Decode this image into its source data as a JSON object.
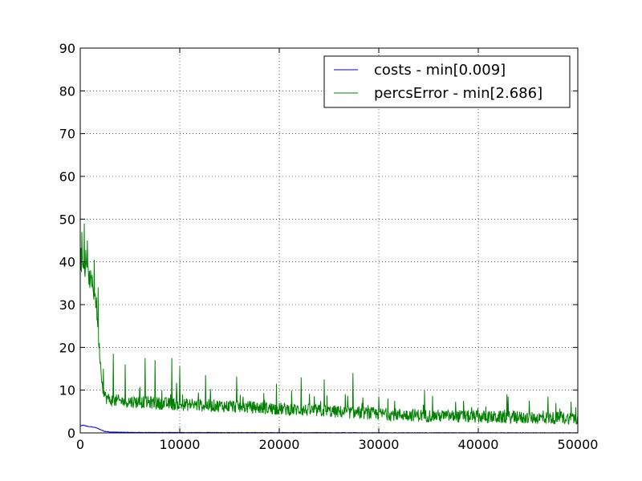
{
  "chart_data": {
    "type": "line",
    "title": "",
    "xlabel": "",
    "ylabel": "",
    "xlim": [
      0,
      50000
    ],
    "ylim": [
      0,
      90
    ],
    "x_ticks": [
      0,
      10000,
      20000,
      30000,
      40000,
      50000
    ],
    "y_ticks": [
      0,
      10,
      20,
      30,
      40,
      50,
      60,
      70,
      80,
      90
    ],
    "grid": true,
    "grid_style": "dotted",
    "legend_placement": "top-right",
    "series": [
      {
        "name": "costs - min[0.009]",
        "color": "#0000ff",
        "noise": "low",
        "x": [
          0,
          300,
          800,
          1200,
          1600,
          2000,
          2400,
          3000,
          4000,
          6000,
          10000,
          20000,
          30000,
          40000,
          50000
        ],
        "y": [
          1.6,
          1.8,
          1.5,
          1.4,
          1.2,
          0.8,
          0.4,
          0.2,
          0.15,
          0.1,
          0.08,
          0.05,
          0.03,
          0.02,
          0.01
        ]
      },
      {
        "name": "percsError - min[2.686]",
        "color": "#008000",
        "noise": "high",
        "x": [
          0,
          300,
          800,
          1200,
          1600,
          1900,
          2200,
          2500,
          3000,
          4000,
          6000,
          8000,
          10000,
          15000,
          20000,
          25000,
          30000,
          35000,
          40000,
          45000,
          50000
        ],
        "y": [
          40,
          38,
          36,
          34,
          30,
          20,
          11,
          8,
          7.2,
          7.0,
          6.8,
          6.5,
          6.2,
          5.8,
          5.2,
          4.6,
          4.0,
          3.6,
          3.3,
          3.1,
          3.0
        ],
        "spikes": [
          {
            "x": 150,
            "y": 47
          },
          {
            "x": 400,
            "y": 49
          },
          {
            "x": 700,
            "y": 45
          },
          {
            "x": 1400,
            "y": 40.5
          },
          {
            "x": 1800,
            "y": 34
          },
          {
            "x": 2300,
            "y": 15
          },
          {
            "x": 3300,
            "y": 18.5
          },
          {
            "x": 4500,
            "y": 16
          },
          {
            "x": 6500,
            "y": 17.5
          },
          {
            "x": 7500,
            "y": 17
          },
          {
            "x": 9200,
            "y": 17.5
          },
          {
            "x": 10000,
            "y": 15.5
          },
          {
            "x": 12600,
            "y": 13.5
          },
          {
            "x": 15700,
            "y": 13.2
          },
          {
            "x": 19700,
            "y": 11.5
          },
          {
            "x": 22200,
            "y": 13
          },
          {
            "x": 24500,
            "y": 12.5
          },
          {
            "x": 27400,
            "y": 14
          },
          {
            "x": 30000,
            "y": 8.5
          },
          {
            "x": 34600,
            "y": 10
          },
          {
            "x": 38500,
            "y": 7.5
          },
          {
            "x": 43000,
            "y": 8.5
          },
          {
            "x": 47000,
            "y": 8.5
          },
          {
            "x": 49800,
            "y": 6
          }
        ]
      }
    ]
  }
}
